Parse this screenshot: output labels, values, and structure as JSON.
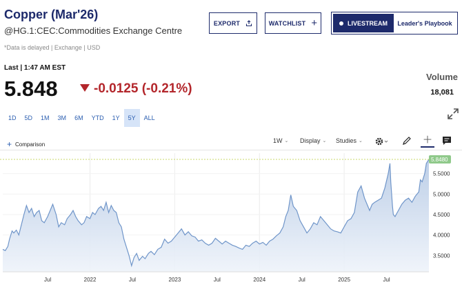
{
  "header": {
    "title": "Copper (Mar'26)",
    "subtitle": "@HG.1:CEC:Commodities Exchange Centre",
    "delayed_note": "*Data is delayed | Exchange | USD",
    "export_label": "EXPORT",
    "watchlist_label": "WATCHLIST",
    "livestream_label": "LIVESTREAM",
    "playbook_label": "Leader's Playbook"
  },
  "quote": {
    "last_label": "Last | 1:47 AM EST",
    "price": "5.848",
    "change": "-0.0125 (-0.21%)",
    "volume_label": "Volume",
    "volume_value": "18,081"
  },
  "colors": {
    "brand": "#1d2a6b",
    "negative": "#b3262b",
    "link": "#2a5db0",
    "line": "#6f95c9",
    "last_badge": "#8fc98a"
  },
  "ranges": [
    {
      "label": "1D",
      "active": false
    },
    {
      "label": "5D",
      "active": false
    },
    {
      "label": "1M",
      "active": false
    },
    {
      "label": "3M",
      "active": false
    },
    {
      "label": "6M",
      "active": false
    },
    {
      "label": "YTD",
      "active": false
    },
    {
      "label": "1Y",
      "active": false
    },
    {
      "label": "5Y",
      "active": true
    },
    {
      "label": "ALL",
      "active": false
    }
  ],
  "toolbar": {
    "comparison_label": "Comparison",
    "interval_label": "1W",
    "display_label": "Display",
    "studies_label": "Studies",
    "icons": [
      "plus-icon",
      "chevron-down-icon",
      "gear-icon",
      "pencil-icon",
      "crosshair-icon",
      "comment-icon",
      "expand-icon"
    ]
  },
  "chart_data": {
    "type": "area",
    "x_tick_labels": [
      "Jul",
      "2022",
      "Jul",
      "2023",
      "Jul",
      "2024",
      "Jul",
      "2025",
      "Jul"
    ],
    "x_tick_years": [
      2021.5,
      2022.0,
      2022.5,
      2023.0,
      2023.5,
      2024.0,
      2024.5,
      2025.0,
      2025.5
    ],
    "y_ticks": [
      3.5,
      4.0,
      4.5,
      5.0,
      5.5
    ],
    "y_tick_labels": [
      "3.5000",
      "4.0000",
      "4.5000",
      "5.0000",
      "5.5000"
    ],
    "ylim": [
      3.1,
      6.0
    ],
    "xlim": [
      2020.97,
      2026.0
    ],
    "last_value_label": "5.8480",
    "last_value": 5.848,
    "series": [
      {
        "x": [
          2020.97,
          2021.0,
          2021.03,
          2021.05,
          2021.08,
          2021.1,
          2021.13,
          2021.16,
          2021.19,
          2021.22,
          2021.25,
          2021.28,
          2021.31,
          2021.34,
          2021.37,
          2021.4,
          2021.43,
          2021.46,
          2021.5,
          2021.53,
          2021.56,
          2021.6,
          2021.63,
          2021.66,
          2021.7,
          2021.73,
          2021.77,
          2021.8,
          2021.83,
          2021.86,
          2021.9,
          2021.93,
          2021.96,
          2022.0,
          2022.03,
          2022.06,
          2022.1,
          2022.13,
          2022.16,
          2022.19,
          2022.22,
          2022.25,
          2022.28,
          2022.31,
          2022.34,
          2022.37,
          2022.4,
          2022.43,
          2022.46,
          2022.49,
          2022.52,
          2022.55,
          2022.58,
          2022.62,
          2022.65,
          2022.69,
          2022.72,
          2022.76,
          2022.8,
          2022.84,
          2022.88,
          2022.92,
          2022.96,
          2023.0,
          2023.04,
          2023.08,
          2023.12,
          2023.16,
          2023.2,
          2023.24,
          2023.28,
          2023.32,
          2023.36,
          2023.4,
          2023.44,
          2023.48,
          2023.52,
          2023.56,
          2023.6,
          2023.64,
          2023.68,
          2023.72,
          2023.76,
          2023.8,
          2023.84,
          2023.88,
          2023.92,
          2023.96,
          2024.0,
          2024.04,
          2024.08,
          2024.12,
          2024.16,
          2024.2,
          2024.24,
          2024.28,
          2024.31,
          2024.34,
          2024.37,
          2024.4,
          2024.44,
          2024.48,
          2024.52,
          2024.56,
          2024.6,
          2024.64,
          2024.68,
          2024.72,
          2024.76,
          2024.8,
          2024.84,
          2024.88,
          2024.92,
          2024.96,
          2025.0,
          2025.04,
          2025.08,
          2025.12,
          2025.16,
          2025.2,
          2025.24,
          2025.27,
          2025.3,
          2025.33,
          2025.36,
          2025.4,
          2025.44,
          2025.48,
          2025.52,
          2025.54,
          2025.55,
          2025.57,
          2025.58,
          2025.6,
          2025.64,
          2025.68,
          2025.72,
          2025.76,
          2025.8,
          2025.84,
          2025.88,
          2025.9,
          2025.92,
          2025.95,
          2025.97,
          2026.0
        ],
        "values": [
          3.65,
          3.62,
          3.72,
          3.9,
          4.1,
          4.05,
          4.12,
          4.0,
          4.25,
          4.5,
          4.72,
          4.55,
          4.65,
          4.45,
          4.55,
          4.6,
          4.35,
          4.3,
          4.45,
          4.6,
          4.75,
          4.5,
          4.2,
          4.3,
          4.25,
          4.4,
          4.5,
          4.6,
          4.45,
          4.35,
          4.25,
          4.3,
          4.45,
          4.4,
          4.55,
          4.5,
          4.65,
          4.7,
          4.6,
          4.8,
          4.55,
          4.72,
          4.6,
          4.55,
          4.3,
          4.2,
          3.9,
          3.7,
          3.5,
          3.25,
          3.45,
          3.55,
          3.38,
          3.48,
          3.42,
          3.55,
          3.6,
          3.52,
          3.65,
          3.7,
          3.9,
          3.8,
          3.85,
          3.95,
          4.05,
          4.15,
          4.0,
          4.08,
          3.98,
          3.95,
          3.85,
          3.88,
          3.8,
          3.75,
          3.8,
          3.92,
          3.85,
          3.78,
          3.85,
          3.8,
          3.75,
          3.72,
          3.68,
          3.65,
          3.75,
          3.72,
          3.8,
          3.85,
          3.78,
          3.82,
          3.75,
          3.85,
          3.9,
          3.98,
          4.05,
          4.2,
          4.45,
          4.6,
          4.98,
          4.7,
          4.6,
          4.35,
          4.2,
          4.05,
          4.15,
          4.3,
          4.25,
          4.45,
          4.35,
          4.25,
          4.15,
          4.1,
          4.08,
          4.05,
          4.2,
          4.35,
          4.4,
          4.55,
          5.05,
          5.2,
          4.9,
          4.75,
          4.6,
          4.75,
          4.8,
          4.85,
          4.9,
          5.15,
          5.5,
          5.75,
          5.3,
          4.7,
          4.5,
          4.45,
          4.6,
          4.75,
          4.85,
          4.9,
          4.8,
          4.95,
          5.05,
          5.35,
          5.3,
          5.5,
          5.75,
          5.848
        ]
      }
    ]
  }
}
